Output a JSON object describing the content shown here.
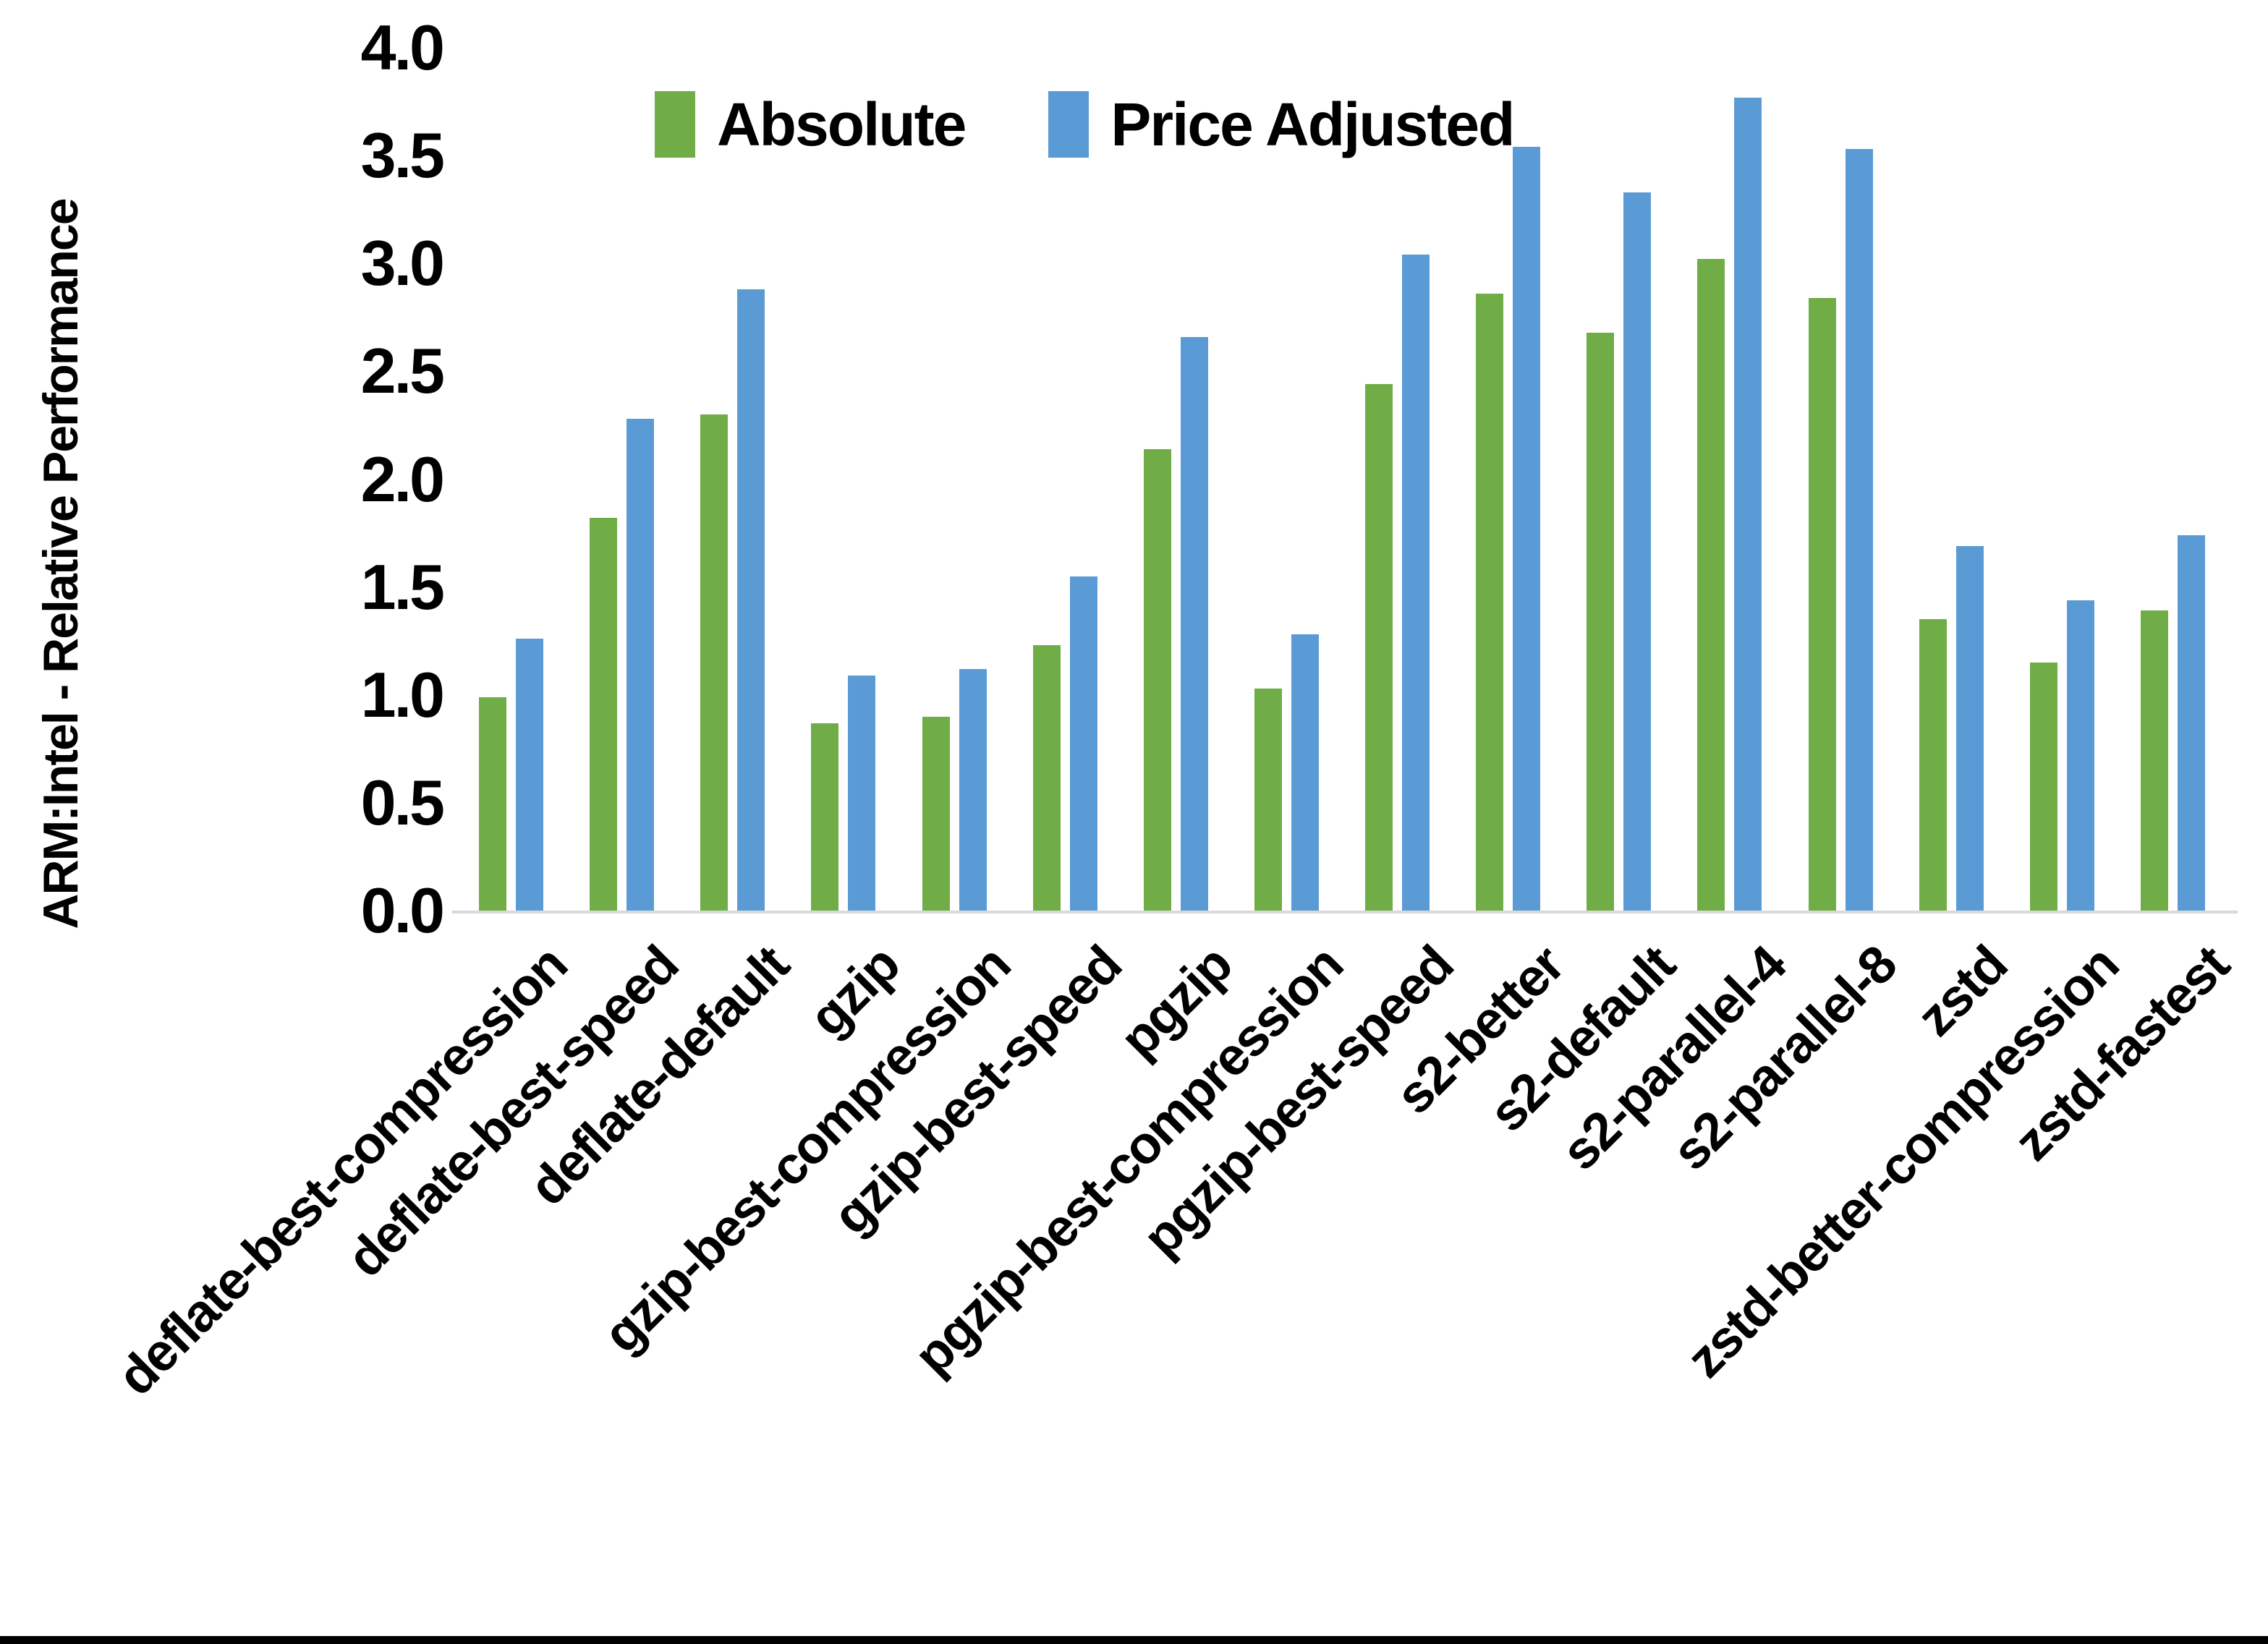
{
  "chart_data": {
    "type": "bar",
    "title": "",
    "xlabel": "",
    "ylabel": "ARM:Intel - Relative Performance",
    "ylim": [
      0.0,
      4.0
    ],
    "ytick_step": 0.5,
    "ytick_labels": [
      "0.0",
      "0.5",
      "1.0",
      "1.5",
      "2.0",
      "2.5",
      "3.0",
      "3.5",
      "4.0"
    ],
    "grid": false,
    "legend_position": "top-center",
    "axis_line_color": "#d9d9d9",
    "text_color": "#000000",
    "categories": [
      "deflate-best-compression",
      "deflate-best-speed",
      "deflate-default",
      "gzip",
      "gzip-best-compression",
      "gzip-best-speed",
      "pgzip",
      "pgzip-best-compression",
      "pgzip-best-speed",
      "s2-better",
      "s2-default",
      "s2-parallel-4",
      "s2-parallel-8",
      "zstd",
      "zstd-better-compression",
      "zstd-fastest"
    ],
    "series": [
      {
        "name": "Absolute",
        "color": "#70AD47",
        "values": [
          0.99,
          1.82,
          2.3,
          0.87,
          0.9,
          1.23,
          2.14,
          1.03,
          2.44,
          2.86,
          2.68,
          3.02,
          2.84,
          1.35,
          1.15,
          1.39
        ]
      },
      {
        "name": "Price Adjusted",
        "color": "#5B9BD5",
        "values": [
          1.26,
          2.28,
          2.88,
          1.09,
          1.12,
          1.55,
          2.66,
          1.28,
          3.04,
          3.54,
          3.33,
          3.77,
          3.53,
          1.69,
          1.44,
          1.74
        ]
      }
    ]
  },
  "page": {
    "bottom_bar_color": "#000000"
  }
}
